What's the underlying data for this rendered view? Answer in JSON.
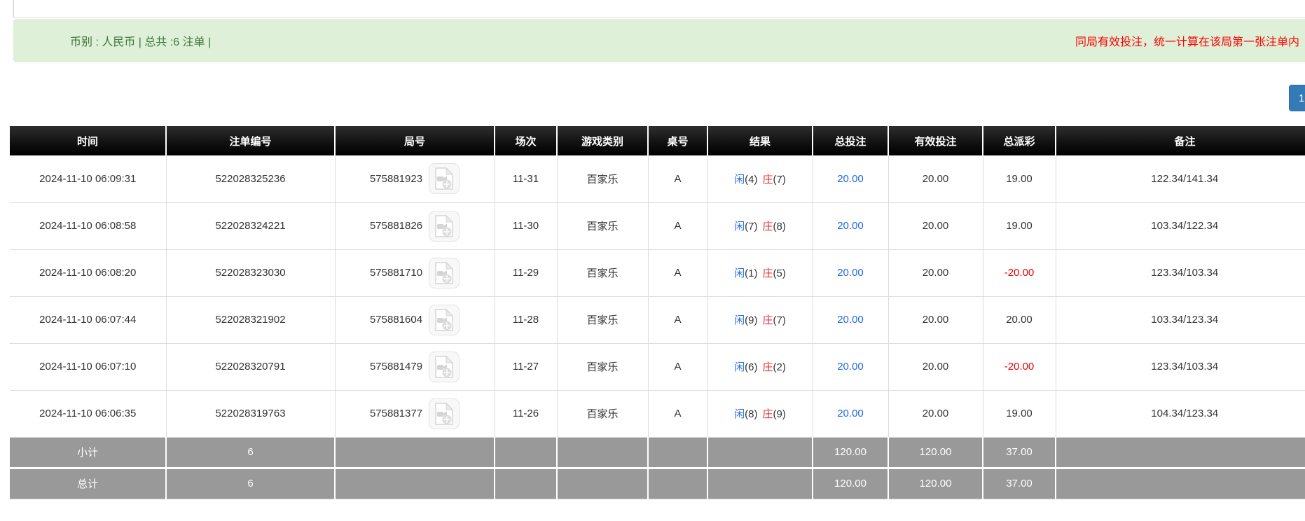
{
  "banner": {
    "summary": "币别 : 人民币 | 总共 :6 注单 |",
    "notice": "同局有效投注，统一计算在该局第一张注单内"
  },
  "pagination": {
    "page": "1"
  },
  "table": {
    "headers": {
      "time": "时间",
      "bet_no": "注单编号",
      "round_no": "局号",
      "session": "场次",
      "game_type": "游戏类别",
      "table_no": "桌号",
      "result": "结果",
      "total_bet": "总投注",
      "valid_bet": "有效投注",
      "payout": "总派彩",
      "remark": "备注"
    },
    "rows": [
      {
        "time": "2024-11-10 06:09:31",
        "bet_no": "522028325236",
        "round_no": "575881923",
        "session": "11-31",
        "game_type": "百家乐",
        "table_no": "A",
        "result": {
          "player_label": "闲",
          "player_value": "(4)",
          "banker_label": "庄",
          "banker_value": "(7)"
        },
        "total_bet": "20.00",
        "valid_bet": "20.00",
        "payout": "19.00",
        "remark": "122.34/141.34"
      },
      {
        "time": "2024-11-10 06:08:58",
        "bet_no": "522028324221",
        "round_no": "575881826",
        "session": "11-30",
        "game_type": "百家乐",
        "table_no": "A",
        "result": {
          "player_label": "闲",
          "player_value": "(7)",
          "banker_label": "庄",
          "banker_value": "(8)"
        },
        "total_bet": "20.00",
        "valid_bet": "20.00",
        "payout": "19.00",
        "remark": "103.34/122.34"
      },
      {
        "time": "2024-11-10 06:08:20",
        "bet_no": "522028323030",
        "round_no": "575881710",
        "session": "11-29",
        "game_type": "百家乐",
        "table_no": "A",
        "result": {
          "player_label": "闲",
          "player_value": "(1)",
          "banker_label": "庄",
          "banker_value": "(5)"
        },
        "total_bet": "20.00",
        "valid_bet": "20.00",
        "payout": "-20.00",
        "remark": "123.34/103.34"
      },
      {
        "time": "2024-11-10 06:07:44",
        "bet_no": "522028321902",
        "round_no": "575881604",
        "session": "11-28",
        "game_type": "百家乐",
        "table_no": "A",
        "result": {
          "player_label": "闲",
          "player_value": "(9)",
          "banker_label": "庄",
          "banker_value": "(7)"
        },
        "total_bet": "20.00",
        "valid_bet": "20.00",
        "payout": "20.00",
        "remark": "103.34/123.34"
      },
      {
        "time": "2024-11-10 06:07:10",
        "bet_no": "522028320791",
        "round_no": "575881479",
        "session": "11-27",
        "game_type": "百家乐",
        "table_no": "A",
        "result": {
          "player_label": "闲",
          "player_value": "(6)",
          "banker_label": "庄",
          "banker_value": "(2)"
        },
        "total_bet": "20.00",
        "valid_bet": "20.00",
        "payout": "-20.00",
        "remark": "123.34/103.34"
      },
      {
        "time": "2024-11-10 06:06:35",
        "bet_no": "522028319763",
        "round_no": "575881377",
        "session": "11-26",
        "game_type": "百家乐",
        "table_no": "A",
        "result": {
          "player_label": "闲",
          "player_value": "(8)",
          "banker_label": "庄",
          "banker_value": "(9)"
        },
        "total_bet": "20.00",
        "valid_bet": "20.00",
        "payout": "19.00",
        "remark": "104.34/123.34"
      }
    ],
    "subtotal": {
      "label": "小计",
      "count": "6",
      "total_bet": "120.00",
      "valid_bet": "120.00",
      "payout": "37.00"
    },
    "total": {
      "label": "总计",
      "count": "6",
      "total_bet": "120.00",
      "valid_bet": "120.00",
      "payout": "37.00"
    }
  },
  "icons": {
    "video_button": "video-file-icon"
  },
  "colors": {
    "banner_bg": "#dff0d8",
    "banner_text": "#3c763d",
    "notice_red": "#ff0000",
    "header_bg": "#000000",
    "summary_row_bg": "#999999",
    "accent_blue": "#2268e3",
    "player_blue": "#2b6de8",
    "banker_red": "#e53333",
    "negative_red": "#ee0000",
    "pagination_blue": "#337ab7"
  }
}
